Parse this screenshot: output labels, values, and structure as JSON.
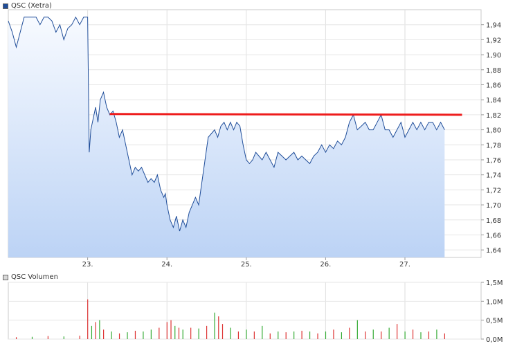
{
  "price_panel": {
    "legend_label": "QSC (Xetra)",
    "legend_color": "#1f4d99"
  },
  "volume_panel": {
    "legend_label": "QSC Volumen",
    "legend_color": "#c8c8c8"
  },
  "chart_data": [
    {
      "type": "line",
      "title": "QSC (Xetra)",
      "xlabel": "",
      "ylabel": "",
      "x_ticks": [
        "23.",
        "24.",
        "25.",
        "26.",
        "27."
      ],
      "ylim": [
        1.63,
        1.96
      ],
      "y_ticks": [
        "1,64",
        "1,66",
        "1,68",
        "1,70",
        "1,72",
        "1,74",
        "1,76",
        "1,78",
        "1,80",
        "1,82",
        "1,84",
        "1,86",
        "1,88",
        "1,90",
        "1,92",
        "1,94"
      ],
      "grid": true,
      "series": [
        {
          "name": "QSC (Xetra)",
          "color": "#1f4d99",
          "fill": "#dce8f8",
          "x": [
            22.0,
            22.05,
            22.1,
            22.15,
            22.2,
            22.25,
            22.3,
            22.35,
            22.4,
            22.45,
            22.5,
            22.55,
            22.6,
            22.65,
            22.7,
            22.75,
            22.8,
            22.85,
            22.9,
            22.95,
            23.0,
            23.02,
            23.04,
            23.06,
            23.08,
            23.1,
            23.13,
            23.16,
            23.2,
            23.24,
            23.28,
            23.32,
            23.36,
            23.4,
            23.44,
            23.48,
            23.52,
            23.56,
            23.6,
            23.64,
            23.68,
            23.72,
            23.76,
            23.8,
            23.84,
            23.88,
            23.92,
            23.96,
            23.98,
            24.0,
            24.04,
            24.08,
            24.12,
            24.16,
            24.2,
            24.24,
            24.28,
            24.32,
            24.36,
            24.4,
            24.44,
            24.48,
            24.52,
            24.56,
            24.6,
            24.64,
            24.68,
            24.72,
            24.76,
            24.8,
            24.84,
            24.88,
            24.92,
            24.96,
            25.0,
            25.04,
            25.08,
            25.12,
            25.16,
            25.2,
            25.25,
            25.3,
            25.35,
            25.4,
            25.45,
            25.5,
            25.55,
            25.6,
            25.65,
            25.7,
            25.75,
            25.8,
            25.85,
            25.9,
            25.95,
            26.0,
            26.05,
            26.1,
            26.15,
            26.2,
            26.25,
            26.3,
            26.35,
            26.4,
            26.45,
            26.5,
            26.55,
            26.6,
            26.65,
            26.7,
            26.75,
            26.8,
            26.85,
            26.9,
            26.95,
            27.0,
            27.05,
            27.1,
            27.15,
            27.2,
            27.25,
            27.3,
            27.35,
            27.4,
            27.45,
            27.5
          ],
          "values": [
            1.945,
            1.93,
            1.91,
            1.93,
            1.95,
            1.95,
            1.95,
            1.95,
            1.94,
            1.95,
            1.95,
            1.945,
            1.93,
            1.94,
            1.92,
            1.935,
            1.94,
            1.95,
            1.94,
            1.95,
            1.95,
            1.77,
            1.8,
            1.81,
            1.82,
            1.83,
            1.81,
            1.84,
            1.85,
            1.83,
            1.82,
            1.825,
            1.81,
            1.79,
            1.8,
            1.78,
            1.76,
            1.74,
            1.75,
            1.745,
            1.75,
            1.74,
            1.73,
            1.735,
            1.73,
            1.74,
            1.72,
            1.71,
            1.715,
            1.7,
            1.68,
            1.67,
            1.685,
            1.665,
            1.68,
            1.67,
            1.69,
            1.7,
            1.71,
            1.7,
            1.73,
            1.76,
            1.79,
            1.795,
            1.8,
            1.79,
            1.805,
            1.81,
            1.8,
            1.81,
            1.8,
            1.81,
            1.805,
            1.78,
            1.76,
            1.755,
            1.76,
            1.77,
            1.765,
            1.76,
            1.77,
            1.76,
            1.75,
            1.77,
            1.765,
            1.76,
            1.765,
            1.77,
            1.76,
            1.765,
            1.76,
            1.755,
            1.765,
            1.77,
            1.78,
            1.77,
            1.78,
            1.775,
            1.785,
            1.78,
            1.79,
            1.81,
            1.82,
            1.8,
            1.805,
            1.81,
            1.8,
            1.8,
            1.81,
            1.82,
            1.8,
            1.8,
            1.79,
            1.8,
            1.81,
            1.79,
            1.8,
            1.81,
            1.8,
            1.81,
            1.8,
            1.81,
            1.81,
            1.8,
            1.81,
            1.8
          ]
        },
        {
          "name": "",
          "color": "#ee1c1c",
          "x": [
            23.28,
            27.72
          ],
          "values": [
            1.821,
            1.82
          ]
        }
      ]
    },
    {
      "type": "bar",
      "title": "QSC Volumen",
      "xlabel": "",
      "ylabel": "",
      "ylim": [
        0,
        1.5
      ],
      "y_ticks": [
        "0,0M",
        "0,5M",
        "1,0M",
        "1,5M"
      ],
      "grid": true,
      "colors": {
        "up": "#33aa33",
        "down": "#dd3333"
      },
      "series": [
        {
          "name": "QSC Volumen",
          "x": [
            22.1,
            22.3,
            22.5,
            22.7,
            22.9,
            23.0,
            23.05,
            23.1,
            23.15,
            23.2,
            23.3,
            23.4,
            23.5,
            23.6,
            23.7,
            23.8,
            23.9,
            24.0,
            24.05,
            24.1,
            24.15,
            24.2,
            24.3,
            24.4,
            24.5,
            24.6,
            24.65,
            24.7,
            24.8,
            24.9,
            25.0,
            25.1,
            25.2,
            25.3,
            25.4,
            25.5,
            25.6,
            25.7,
            25.8,
            25.9,
            26.0,
            26.1,
            26.2,
            26.3,
            26.4,
            26.5,
            26.6,
            26.7,
            26.8,
            26.9,
            27.0,
            27.1,
            27.2,
            27.3,
            27.4,
            27.5
          ],
          "values": [
            0.05,
            0.06,
            0.08,
            0.07,
            0.09,
            1.05,
            0.35,
            0.45,
            0.5,
            0.25,
            0.2,
            0.15,
            0.18,
            0.22,
            0.2,
            0.25,
            0.3,
            0.45,
            0.5,
            0.35,
            0.3,
            0.25,
            0.3,
            0.28,
            0.35,
            0.7,
            0.6,
            0.4,
            0.3,
            0.2,
            0.25,
            0.2,
            0.35,
            0.15,
            0.2,
            0.18,
            0.2,
            0.22,
            0.2,
            0.15,
            0.2,
            0.25,
            0.18,
            0.3,
            0.5,
            0.2,
            0.25,
            0.2,
            0.3,
            0.4,
            0.2,
            0.25,
            0.18,
            0.2,
            0.25,
            0.15
          ],
          "up": [
            false,
            true,
            false,
            true,
            false,
            false,
            true,
            false,
            true,
            false,
            true,
            false,
            true,
            false,
            true,
            true,
            false,
            false,
            false,
            true,
            false,
            true,
            false,
            true,
            false,
            true,
            false,
            false,
            true,
            false,
            true,
            false,
            true,
            false,
            true,
            false,
            true,
            false,
            true,
            false,
            true,
            false,
            true,
            false,
            true,
            false,
            true,
            false,
            true,
            false,
            true,
            false,
            true,
            false,
            true,
            false
          ]
        }
      ]
    }
  ]
}
